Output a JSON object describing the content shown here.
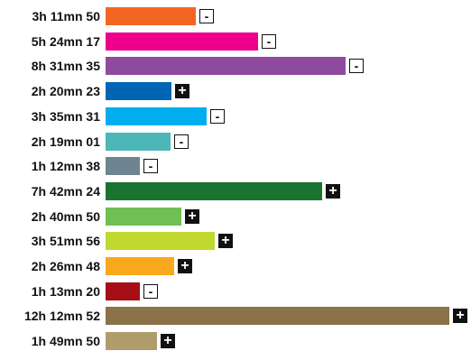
{
  "chart_data": {
    "type": "bar",
    "orientation": "horizontal",
    "categories": [
      "3h 11mn 50",
      "5h 24mn 17",
      "8h 31mn 35",
      "2h 20mn 23",
      "3h 35mn 31",
      "2h 19mn 01",
      "1h 12mn 38",
      "7h 42mn 24",
      "2h 40mn 50",
      "3h 51mn 56",
      "2h 26mn 48",
      "1h 13mn 20",
      "12h 12mn 52",
      "1h 49mn 50"
    ],
    "values": [
      11510,
      19457,
      30695,
      8423,
      12931,
      8341,
      4358,
      27744,
      9650,
      13916,
      8808,
      4400,
      43972,
      6590
    ],
    "value_unit": "seconds",
    "colors": [
      "#F26522",
      "#EC008C",
      "#8E4B9E",
      "#0066B3",
      "#00AEEF",
      "#4DB6B7",
      "#6E8490",
      "#1B7332",
      "#70BF54",
      "#C1D82F",
      "#F7A81B",
      "#A50F15",
      "#8B7248",
      "#B09C6B"
    ],
    "toggles": [
      "minus",
      "minus",
      "minus",
      "plus",
      "minus",
      "minus",
      "minus",
      "plus",
      "plus",
      "plus",
      "plus",
      "minus",
      "plus",
      "plus"
    ],
    "toggle_symbols": {
      "plus": "+",
      "minus": "-"
    },
    "title": "",
    "xlabel": "",
    "ylabel": "",
    "grid": false,
    "legend": "none"
  }
}
